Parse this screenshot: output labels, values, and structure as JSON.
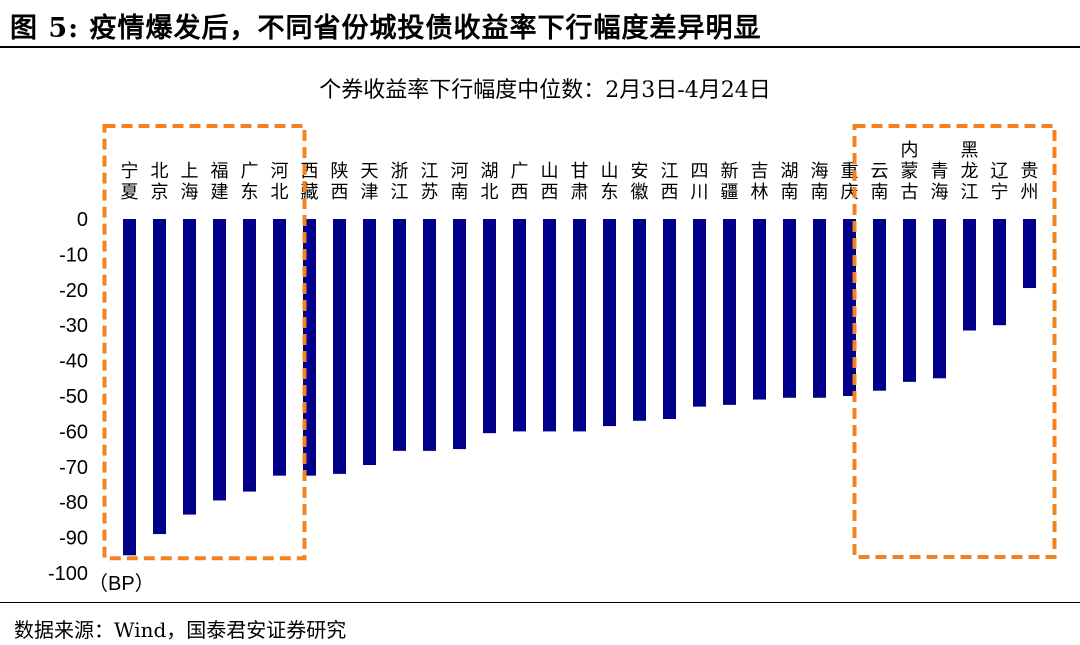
{
  "figure": {
    "title": "图 5:  疫情爆发后，不同省份城投债收益率下行幅度差异明显",
    "source": "数据来源：Wind，国泰君安证券研究"
  },
  "chart_data": {
    "type": "bar",
    "title": "个券收益率下行幅度中位数：2月3日-4月24日",
    "ylabel": "（BP）",
    "ylim": [
      -100,
      0
    ],
    "yticks": [
      0,
      -10,
      -20,
      -30,
      -40,
      -50,
      -60,
      -70,
      -80,
      -90,
      -100
    ],
    "bar_color": "#00008B",
    "highlight_color": "#F58220",
    "grid": false,
    "categories": [
      "宁夏",
      "北京",
      "上海",
      "福建",
      "广东",
      "河北",
      "西藏",
      "陕西",
      "天津",
      "浙江",
      "江苏",
      "河南",
      "湖北",
      "广西",
      "山西",
      "甘肃",
      "山东",
      "安徽",
      "江西",
      "四川",
      "新疆",
      "吉林",
      "湖南",
      "海南",
      "重庆",
      "云南",
      "内蒙古",
      "青海",
      "黑龙江",
      "辽宁",
      "贵州"
    ],
    "values": [
      -95,
      -89,
      -83.5,
      -79.5,
      -77,
      -72.5,
      -72.5,
      -72,
      -69.5,
      -65.5,
      -65.5,
      -65,
      -60.5,
      -60,
      -60,
      -60,
      -58.5,
      -57,
      -56.5,
      -53,
      -52.5,
      -51,
      -50.5,
      -50.5,
      -50,
      -48.5,
      -46,
      -45,
      -31.5,
      -30,
      -19.5
    ],
    "highlights": [
      {
        "from": 0,
        "to": 5
      },
      {
        "from": 25,
        "to": 30
      }
    ]
  }
}
